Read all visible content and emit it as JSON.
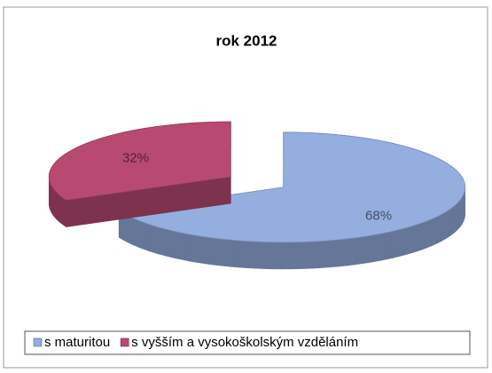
{
  "chart_data": {
    "type": "pie",
    "title": "rok 2012",
    "categories": [
      "s maturitou",
      "s vyšším a vysokoškolským vzděláním"
    ],
    "values": [
      68,
      32
    ],
    "value_labels": [
      "68%",
      "32%"
    ],
    "colors": [
      "#95aee0",
      "#b84a72"
    ],
    "legend": "bottom"
  }
}
